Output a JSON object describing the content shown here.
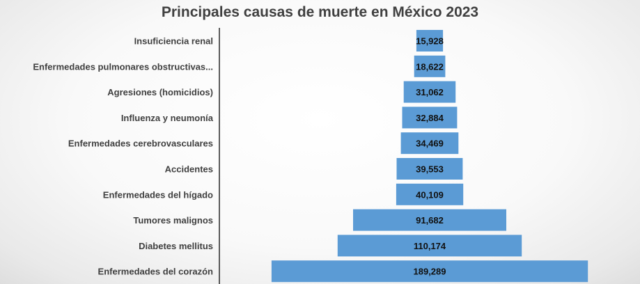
{
  "chart_data": {
    "type": "bar",
    "orientation": "horizontal",
    "style": "funnel",
    "title": "Principales causas de muerte en México 2023",
    "categories": [
      "Insuficiencia renal",
      "Enfermedades pulmonares obstructivas...",
      "Agresiones (homicidios)",
      "Influenza y neumonía",
      "Enfermedades cerebrovasculares",
      "Accidentes",
      "Enfermedades del hígado",
      "Tumores malignos",
      "Diabetes mellitus",
      "Enfermedades del corazón"
    ],
    "values": [
      15928,
      18622,
      31062,
      32884,
      34469,
      39553,
      40109,
      91682,
      110174,
      189289
    ],
    "value_labels": [
      "15,928",
      "18,622",
      "31,062",
      "32,884",
      "34,469",
      "39,553",
      "40,109",
      "91,682",
      "110,174",
      "189,289"
    ],
    "bar_color": "#5b9bd5",
    "grid": false,
    "legend": "none"
  }
}
